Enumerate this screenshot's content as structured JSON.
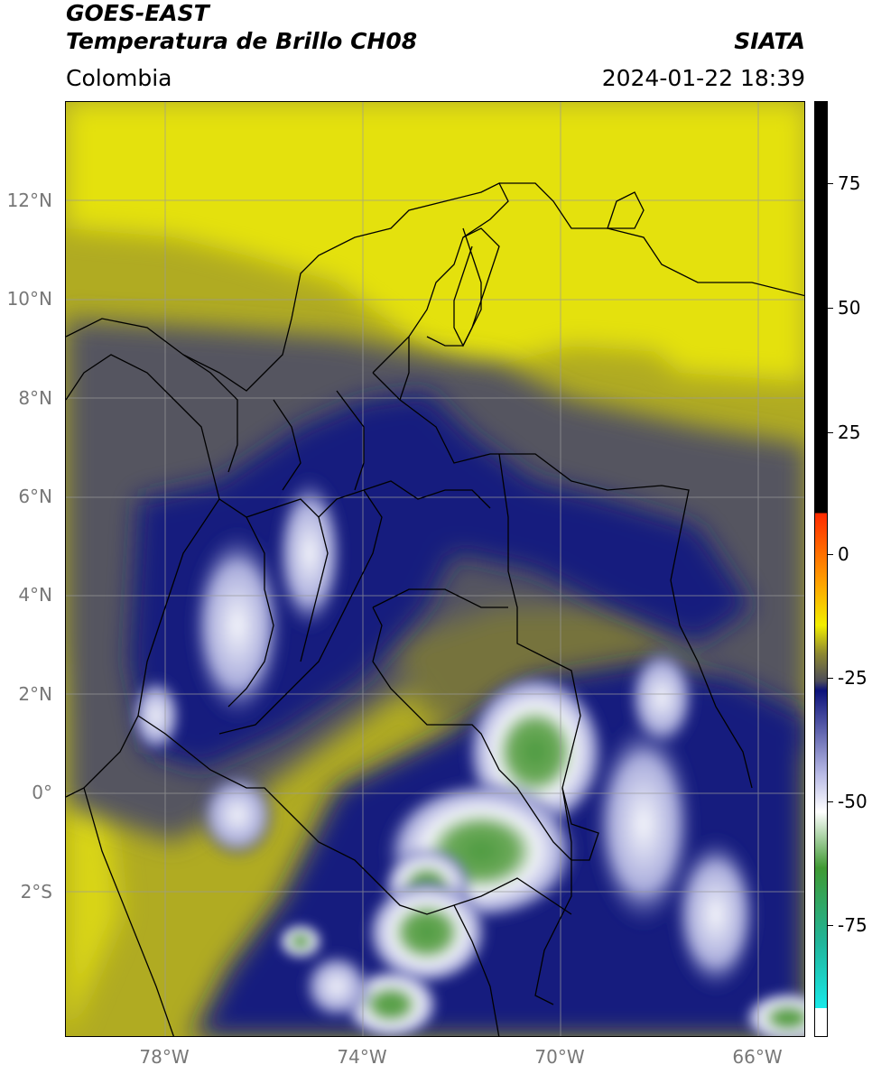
{
  "header": {
    "satellite": "GOES-EAST",
    "product": "Temperatura de Brillo CH08",
    "region": "Colombia",
    "organization": "SIATA",
    "datetime": "2024-01-22 18:39"
  },
  "axes": {
    "lat_labels": [
      "12°N",
      "10°N",
      "8°N",
      "6°N",
      "4°N",
      "2°N",
      "0°",
      "2°S"
    ],
    "lon_labels": [
      "78°W",
      "74°W",
      "70°W",
      "66°W"
    ]
  },
  "colorbar": {
    "tick_labels": [
      "75",
      "50",
      "25",
      "0",
      "-25",
      "-50",
      "-75"
    ],
    "colors": {
      "hot": "#000000",
      "red": "#ff2a00",
      "orange": "#ff9a00",
      "yellow": "#f2ee00",
      "olive": "#8f8a30",
      "gray": "#4d4d5a",
      "navy": "#0c127a",
      "lavender": "#b9bbe6",
      "white": "#ffffff",
      "green": "#3f9a33",
      "teal": "#21b59a",
      "cyan": "#19e8e8"
    }
  },
  "map_colors": {
    "yellow": "#e4e10c",
    "olive": "#b0ab22",
    "dark_olive": "#76733c",
    "gray": "#545460",
    "navy": "#131b7e",
    "lavender": "#a9acdc",
    "white": "#f5f6fb",
    "green": "#4c9a3f",
    "border": "#000000",
    "grid": "#9a9a9a"
  }
}
